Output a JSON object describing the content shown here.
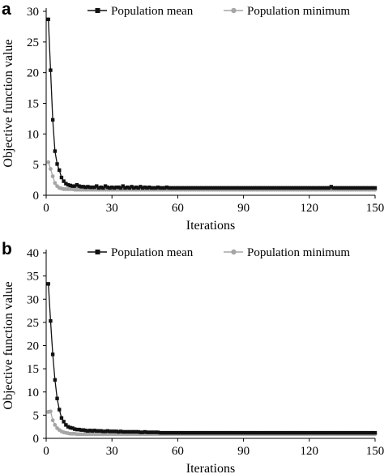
{
  "chart_data": [
    {
      "type": "line",
      "panel_label": "a",
      "xlabel": "Iterations",
      "ylabel": "Objective function value",
      "xlim": [
        0,
        150
      ],
      "ylim": [
        0,
        30
      ],
      "x_ticks": [
        0,
        30,
        60,
        90,
        120,
        150
      ],
      "y_ticks": [
        0,
        5,
        10,
        15,
        20,
        25,
        30
      ],
      "grid": false,
      "legend_position": "top",
      "x": [
        1,
        2,
        3,
        4,
        5,
        6,
        7,
        8,
        9,
        10,
        11,
        12,
        13,
        14,
        15,
        16,
        17,
        18,
        19,
        20,
        21,
        22,
        23,
        24,
        25,
        26,
        27,
        28,
        29,
        30,
        31,
        32,
        33,
        34,
        35,
        36,
        37,
        38,
        39,
        40,
        41,
        42,
        43,
        44,
        45,
        46,
        47,
        48,
        49,
        50,
        51,
        52,
        53,
        54,
        55,
        56,
        57,
        58,
        59,
        60,
        61,
        62,
        63,
        64,
        65,
        66,
        67,
        68,
        69,
        70,
        71,
        72,
        73,
        74,
        75,
        76,
        77,
        78,
        79,
        80,
        81,
        82,
        83,
        84,
        85,
        86,
        87,
        88,
        89,
        90,
        91,
        92,
        93,
        94,
        95,
        96,
        97,
        98,
        99,
        100,
        101,
        102,
        103,
        104,
        105,
        106,
        107,
        108,
        109,
        110,
        111,
        112,
        113,
        114,
        115,
        116,
        117,
        118,
        119,
        120,
        121,
        122,
        123,
        124,
        125,
        126,
        127,
        128,
        129,
        130,
        131,
        132,
        133,
        134,
        135,
        136,
        137,
        138,
        139,
        140,
        141,
        142,
        143,
        144,
        145,
        146,
        147,
        148,
        149,
        150
      ],
      "series": [
        {
          "name": "Population mean",
          "color": "#111111",
          "marker": "square",
          "values": [
            28.7,
            20.4,
            12.3,
            7.2,
            5.1,
            4.1,
            2.9,
            2.3,
            1.9,
            1.7,
            1.6,
            1.5,
            1.5,
            1.7,
            1.5,
            1.4,
            1.4,
            1.3,
            1.4,
            1.3,
            1.3,
            1.3,
            1.5,
            1.2,
            1.3,
            1.2,
            1.5,
            1.3,
            1.2,
            1.3,
            1.2,
            1.3,
            1.3,
            1.2,
            1.5,
            1.2,
            1.3,
            1.2,
            1.4,
            1.2,
            1.3,
            1.2,
            1.4,
            1.2,
            1.3,
            1.2,
            1.3,
            1.2,
            1.2,
            1.2,
            1.3,
            1.2,
            1.2,
            1.2,
            1.3,
            1.2,
            1.2,
            1.2,
            1.2,
            1.2,
            1.2,
            1.2,
            1.2,
            1.2,
            1.2,
            1.2,
            1.2,
            1.2,
            1.2,
            1.2,
            1.2,
            1.2,
            1.2,
            1.2,
            1.2,
            1.2,
            1.2,
            1.2,
            1.2,
            1.2,
            1.2,
            1.2,
            1.2,
            1.2,
            1.2,
            1.2,
            1.2,
            1.2,
            1.2,
            1.2,
            1.2,
            1.2,
            1.2,
            1.2,
            1.2,
            1.2,
            1.2,
            1.2,
            1.2,
            1.2,
            1.2,
            1.2,
            1.2,
            1.2,
            1.2,
            1.2,
            1.2,
            1.2,
            1.2,
            1.2,
            1.2,
            1.2,
            1.2,
            1.2,
            1.2,
            1.2,
            1.2,
            1.2,
            1.2,
            1.2,
            1.2,
            1.2,
            1.2,
            1.2,
            1.2,
            1.2,
            1.2,
            1.2,
            1.2,
            1.4,
            1.2,
            1.2,
            1.2,
            1.2,
            1.2,
            1.2,
            1.2,
            1.2,
            1.2,
            1.2,
            1.2,
            1.2,
            1.2,
            1.2,
            1.2,
            1.2,
            1.2,
            1.2,
            1.2,
            1.2
          ]
        },
        {
          "name": "Population minimum",
          "color": "#a6a6a6",
          "marker": "circle",
          "values": [
            5.4,
            4.3,
            3.1,
            2.0,
            1.5,
            1.2,
            1.1,
            1.0,
            1.0,
            1.0,
            1.0,
            1.0,
            0.9,
            0.9,
            0.9,
            0.9,
            0.9,
            0.9,
            0.9,
            0.9,
            0.9,
            0.9,
            0.9,
            0.9,
            0.9,
            0.9,
            0.9,
            0.9,
            0.9,
            0.9,
            0.9,
            0.9,
            0.9,
            0.9,
            0.9,
            0.9,
            0.9,
            0.9,
            0.9,
            0.9,
            0.9,
            0.9,
            0.9,
            0.9,
            0.9,
            0.9,
            0.9,
            0.9,
            0.9,
            0.9,
            0.9,
            0.9,
            0.9,
            0.9,
            0.9,
            0.9,
            0.9,
            0.9,
            0.9,
            0.9,
            0.9,
            0.9,
            0.9,
            0.9,
            0.9,
            0.9,
            0.9,
            0.9,
            0.9,
            0.9,
            0.9,
            0.9,
            0.9,
            0.9,
            0.9,
            0.9,
            0.9,
            0.9,
            0.9,
            0.9,
            0.9,
            0.9,
            0.9,
            0.9,
            0.9,
            0.9,
            0.9,
            0.9,
            0.9,
            0.9,
            0.9,
            0.9,
            0.9,
            0.9,
            0.9,
            0.9,
            0.9,
            0.9,
            0.9,
            0.9,
            0.9,
            0.9,
            0.9,
            0.9,
            0.9,
            0.9,
            0.9,
            0.9,
            0.9,
            0.9,
            0.9,
            0.9,
            0.9,
            0.9,
            0.9,
            0.9,
            0.9,
            0.9,
            0.9,
            0.9,
            0.9,
            0.9,
            0.9,
            0.9,
            0.9,
            0.9,
            0.9,
            0.9,
            0.9,
            0.9,
            0.9,
            0.9,
            0.9,
            0.9,
            0.9,
            0.9,
            0.9,
            0.9,
            0.9,
            0.9,
            0.9,
            0.9,
            0.9,
            0.9,
            0.9,
            0.9,
            0.9,
            0.9,
            0.9,
            0.9
          ]
        }
      ]
    },
    {
      "type": "line",
      "panel_label": "b",
      "xlabel": "Iterations",
      "ylabel": "Objective function value",
      "xlim": [
        0,
        150
      ],
      "ylim": [
        0,
        40
      ],
      "x_ticks": [
        0,
        30,
        60,
        90,
        120,
        150
      ],
      "y_ticks": [
        0,
        5,
        10,
        15,
        20,
        25,
        30,
        35,
        40
      ],
      "grid": false,
      "legend_position": "top",
      "x": [
        1,
        2,
        3,
        4,
        5,
        6,
        7,
        8,
        9,
        10,
        11,
        12,
        13,
        14,
        15,
        16,
        17,
        18,
        19,
        20,
        21,
        22,
        23,
        24,
        25,
        26,
        27,
        28,
        29,
        30,
        31,
        32,
        33,
        34,
        35,
        36,
        37,
        38,
        39,
        40,
        41,
        42,
        43,
        44,
        45,
        46,
        47,
        48,
        49,
        50,
        51,
        52,
        53,
        54,
        55,
        56,
        57,
        58,
        59,
        60,
        61,
        62,
        63,
        64,
        65,
        66,
        67,
        68,
        69,
        70,
        71,
        72,
        73,
        74,
        75,
        76,
        77,
        78,
        79,
        80,
        81,
        82,
        83,
        84,
        85,
        86,
        87,
        88,
        89,
        90,
        91,
        92,
        93,
        94,
        95,
        96,
        97,
        98,
        99,
        100,
        101,
        102,
        103,
        104,
        105,
        106,
        107,
        108,
        109,
        110,
        111,
        112,
        113,
        114,
        115,
        116,
        117,
        118,
        119,
        120,
        121,
        122,
        123,
        124,
        125,
        126,
        127,
        128,
        129,
        130,
        131,
        132,
        133,
        134,
        135,
        136,
        137,
        138,
        139,
        140,
        141,
        142,
        143,
        144,
        145,
        146,
        147,
        148,
        149,
        150
      ],
      "series": [
        {
          "name": "Population mean",
          "color": "#111111",
          "marker": "square",
          "values": [
            33.3,
            25.3,
            18.1,
            12.6,
            8.6,
            6.2,
            4.4,
            3.6,
            2.9,
            2.5,
            2.3,
            2.2,
            2.0,
            1.9,
            1.9,
            1.8,
            1.8,
            1.7,
            1.6,
            1.7,
            1.6,
            1.7,
            1.6,
            1.6,
            1.6,
            1.5,
            1.5,
            1.6,
            1.5,
            1.5,
            1.5,
            1.5,
            1.4,
            1.5,
            1.4,
            1.4,
            1.4,
            1.4,
            1.4,
            1.4,
            1.4,
            1.4,
            1.3,
            1.3,
            1.4,
            1.3,
            1.3,
            1.3,
            1.3,
            1.3,
            1.3,
            1.2,
            1.2,
            1.2,
            1.2,
            1.2,
            1.2,
            1.2,
            1.2,
            1.2,
            1.2,
            1.2,
            1.2,
            1.2,
            1.2,
            1.2,
            1.2,
            1.2,
            1.2,
            1.2,
            1.2,
            1.2,
            1.2,
            1.2,
            1.2,
            1.2,
            1.2,
            1.2,
            1.2,
            1.2,
            1.2,
            1.2,
            1.2,
            1.2,
            1.2,
            1.2,
            1.2,
            1.2,
            1.2,
            1.2,
            1.2,
            1.2,
            1.2,
            1.2,
            1.2,
            1.2,
            1.2,
            1.2,
            1.2,
            1.2,
            1.2,
            1.2,
            1.2,
            1.2,
            1.2,
            1.2,
            1.2,
            1.2,
            1.2,
            1.2,
            1.2,
            1.2,
            1.2,
            1.2,
            1.2,
            1.2,
            1.2,
            1.2,
            1.2,
            1.2,
            1.2,
            1.2,
            1.2,
            1.2,
            1.2,
            1.2,
            1.2,
            1.2,
            1.2,
            1.2,
            1.2,
            1.2,
            1.2,
            1.2,
            1.2,
            1.2,
            1.2,
            1.2,
            1.2,
            1.2,
            1.2,
            1.2,
            1.2,
            1.2,
            1.2,
            1.2,
            1.2,
            1.2,
            1.2,
            1.2
          ]
        },
        {
          "name": "Population minimum",
          "color": "#a6a6a6",
          "marker": "circle",
          "values": [
            5.7,
            5.8,
            3.9,
            2.9,
            2.2,
            1.8,
            1.5,
            1.3,
            1.2,
            1.1,
            1.0,
            1.0,
            1.0,
            0.9,
            0.9,
            0.9,
            0.9,
            0.9,
            0.9,
            0.9,
            0.9,
            0.9,
            0.9,
            0.9,
            0.9,
            0.9,
            0.9,
            0.9,
            0.9,
            0.9,
            0.9,
            0.9,
            0.9,
            0.9,
            0.9,
            0.9,
            0.9,
            0.9,
            0.9,
            0.9,
            0.9,
            0.9,
            0.9,
            0.9,
            0.9,
            0.9,
            0.9,
            0.9,
            0.9,
            0.9,
            0.9,
            0.9,
            0.9,
            0.9,
            0.9,
            0.9,
            0.9,
            0.9,
            0.9,
            0.9,
            0.9,
            0.9,
            0.9,
            0.9,
            0.9,
            0.9,
            0.9,
            0.9,
            0.9,
            0.9,
            0.9,
            0.9,
            0.9,
            0.9,
            0.9,
            0.9,
            0.9,
            0.9,
            0.9,
            0.9,
            0.9,
            0.9,
            0.9,
            0.9,
            0.9,
            0.9,
            0.9,
            0.9,
            0.9,
            0.9,
            0.9,
            0.9,
            0.9,
            0.9,
            0.9,
            0.9,
            0.9,
            0.9,
            0.9,
            0.9,
            0.9,
            0.9,
            0.9,
            0.9,
            0.9,
            0.9,
            0.9,
            0.9,
            0.9,
            0.9,
            0.9,
            0.9,
            0.9,
            0.9,
            0.9,
            0.9,
            0.9,
            0.9,
            0.9,
            0.9,
            0.9,
            0.9,
            0.9,
            0.9,
            0.9,
            0.9,
            0.9,
            0.9,
            0.9,
            0.9,
            0.9,
            0.9,
            0.9,
            0.9,
            0.9,
            0.9,
            0.9,
            0.9,
            0.9,
            0.9,
            0.9,
            0.9,
            0.9,
            0.9,
            0.9,
            0.9,
            0.9,
            0.9,
            0.9,
            0.9
          ]
        }
      ]
    }
  ]
}
